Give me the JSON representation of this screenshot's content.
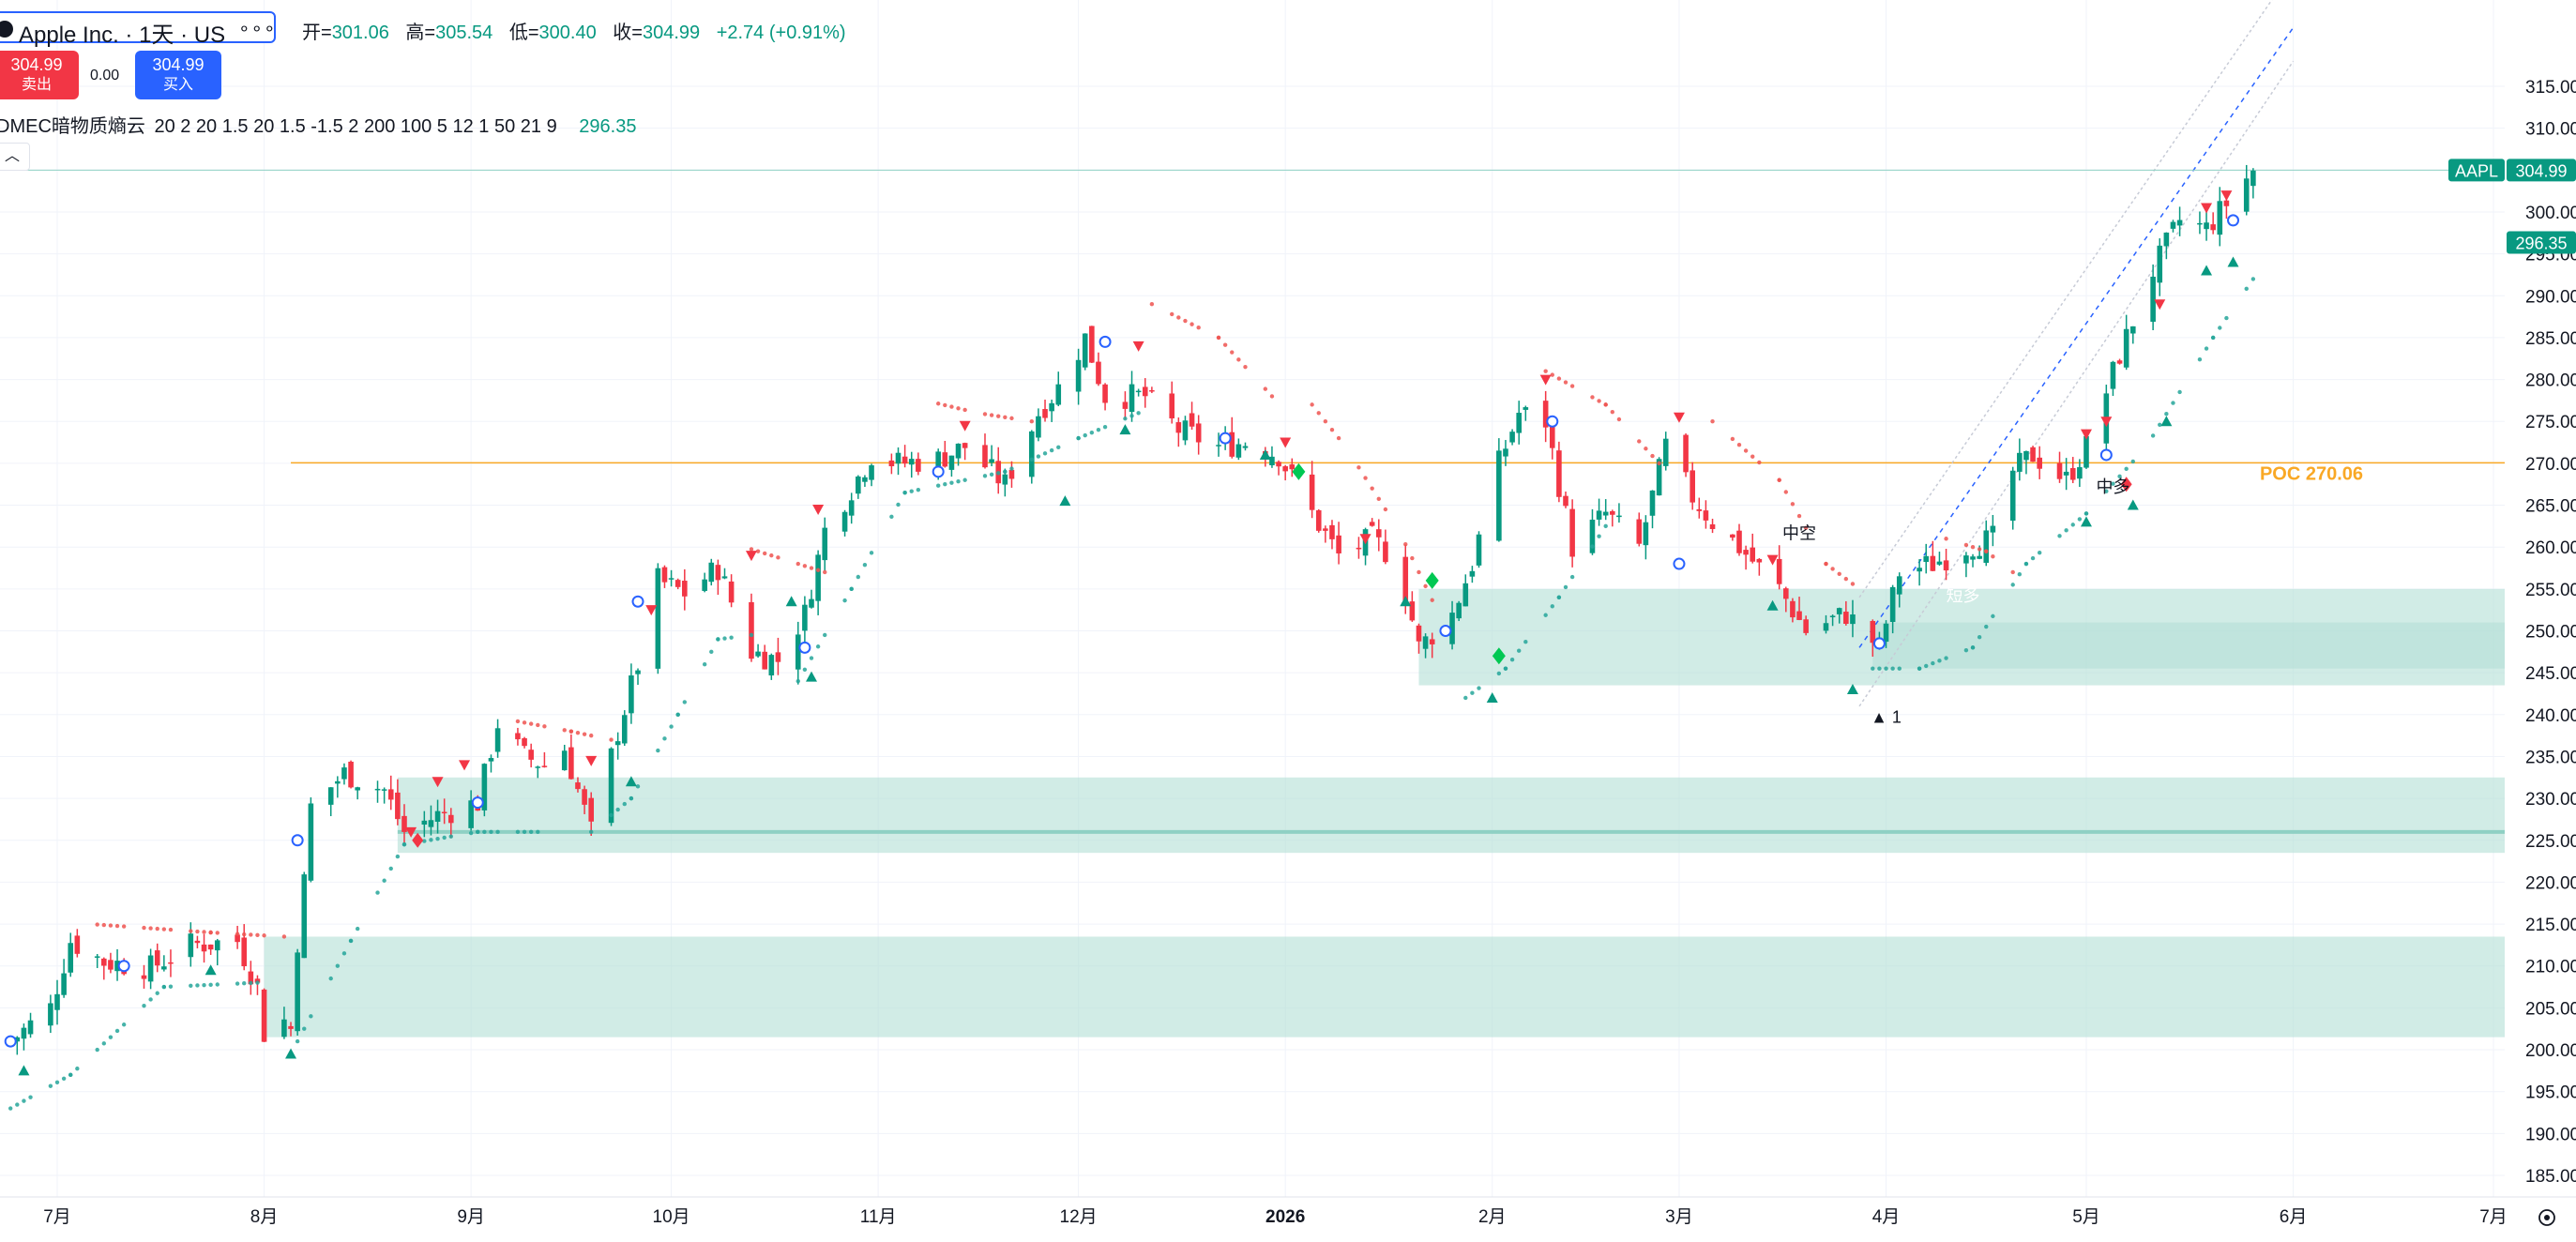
{
  "header": {
    "symbol_title": "Apple Inc. · 1天 · US",
    "ohlc": [
      {
        "key": "开=",
        "value": "301.06"
      },
      {
        "key": "高=",
        "value": "305.54"
      },
      {
        "key": "低=",
        "value": "300.40"
      },
      {
        "key": "收=",
        "value": "304.99"
      }
    ],
    "change": "+2.74 (+0.91%)",
    "sell_price": "304.99",
    "sell_label": "卖出",
    "spread": "0.00",
    "buy_price": "304.99",
    "buy_label": "买入",
    "indicator_name": "DMEC暗物质熵云",
    "indicator_params": "20 2 20 1.5 20 1.5 -1.5 2 200 100 5 12 1 50 21 9",
    "indicator_value": "296.35",
    "collapse_icon": "chevron-up-icon"
  },
  "colors": {
    "up": "#089981",
    "down": "#f23645",
    "zone": "#b2dfd6",
    "poc": "#f9a825",
    "sar_up": "#26a69a",
    "sar_down": "#ef5350",
    "channel_mid": "#2962ff"
  },
  "chart_data": {
    "type": "candlestick",
    "symbol": "AAPL",
    "last_price": 304.99,
    "indicator_price": 296.35,
    "ylim": [
      183,
      318
    ],
    "y_ticks": [
      "185.00",
      "190.00",
      "195.00",
      "200.00",
      "205.00",
      "210.00",
      "215.00",
      "220.00",
      "225.00",
      "230.00",
      "235.00",
      "240.00",
      "245.00",
      "250.00",
      "255.00",
      "260.00",
      "265.00",
      "270.00",
      "275.00",
      "280.00",
      "285.00",
      "290.00",
      "295.00",
      "300.00",
      "305.00",
      "310.00",
      "315.00"
    ],
    "x_labels": [
      {
        "label": "7月",
        "date": "2025-07-01"
      },
      {
        "label": "8月",
        "date": "2025-08-01"
      },
      {
        "label": "9月",
        "date": "2025-09-01"
      },
      {
        "label": "10月",
        "date": "2025-10-01"
      },
      {
        "label": "11月",
        "date": "2025-11-01"
      },
      {
        "label": "12月",
        "date": "2025-12-01"
      },
      {
        "label": "2026",
        "date": "2026-01-01"
      },
      {
        "label": "2月",
        "date": "2026-02-01"
      },
      {
        "label": "3月",
        "date": "2026-03-01"
      },
      {
        "label": "4月",
        "date": "2026-04-01"
      },
      {
        "label": "5月",
        "date": "2026-05-01"
      },
      {
        "label": "6月",
        "date": "2026-06-01"
      },
      {
        "label": "7月",
        "date": "2026-07-01"
      }
    ],
    "close_path": [
      [
        "2025-06-24",
        201.0
      ],
      [
        "2025-06-30",
        205.0
      ],
      [
        "2025-07-03",
        213.0
      ],
      [
        "2025-07-08",
        210.5
      ],
      [
        "2025-07-15",
        209.8
      ],
      [
        "2025-07-21",
        212.5
      ],
      [
        "2025-07-28",
        213.0
      ],
      [
        "2025-07-31",
        207.5
      ],
      [
        "2025-08-01",
        202.0
      ],
      [
        "2025-08-04",
        203.5
      ],
      [
        "2025-08-05",
        202.5
      ],
      [
        "2025-08-06",
        213.0
      ],
      [
        "2025-08-07",
        220.0
      ],
      [
        "2025-08-08",
        229.0
      ],
      [
        "2025-08-13",
        233.0
      ],
      [
        "2025-08-19",
        231.0
      ],
      [
        "2025-08-22",
        226.0
      ],
      [
        "2025-08-27",
        228.0
      ],
      [
        "2025-09-02",
        229.5
      ],
      [
        "2025-09-05",
        239.0
      ],
      [
        "2025-09-09",
        235.0
      ],
      [
        "2025-09-12",
        234.0
      ],
      [
        "2025-09-15",
        236.0
      ],
      [
        "2025-09-19",
        226.0
      ],
      [
        "2025-09-23",
        238.0
      ],
      [
        "2025-09-26",
        246.0
      ],
      [
        "2025-09-29",
        256.0
      ],
      [
        "2025-10-03",
        254.5
      ],
      [
        "2025-10-08",
        257.5
      ],
      [
        "2025-10-13",
        247.5
      ],
      [
        "2025-10-17",
        246.5
      ],
      [
        "2025-10-21",
        252.0
      ],
      [
        "2025-10-24",
        262.0
      ],
      [
        "2025-10-28",
        267.0
      ],
      [
        "2025-10-31",
        271.0
      ],
      [
        "2025-11-04",
        270.0
      ],
      [
        "2025-11-10",
        270.5
      ],
      [
        "2025-11-14",
        272.0
      ],
      [
        "2025-11-20",
        267.5
      ],
      [
        "2025-11-25",
        276.0
      ],
      [
        "2025-11-28",
        279.0
      ],
      [
        "2025-12-02",
        285.0
      ],
      [
        "2025-12-05",
        278.0
      ],
      [
        "2025-12-11",
        278.0
      ],
      [
        "2025-12-16",
        274.0
      ],
      [
        "2025-12-22",
        272.0
      ],
      [
        "2025-12-26",
        272.5
      ],
      [
        "2025-12-31",
        271.0
      ],
      [
        "2026-01-05",
        264.0
      ],
      [
        "2026-01-09",
        259.0
      ],
      [
        "2026-01-14",
        261.0
      ],
      [
        "2026-01-18",
        258.0
      ],
      [
        "2026-01-21",
        248.0
      ],
      [
        "2026-01-26",
        252.0
      ],
      [
        "2026-01-29",
        258.0
      ],
      [
        "2026-02-02",
        270.0
      ],
      [
        "2026-02-05",
        276.0
      ],
      [
        "2026-02-09",
        275.0
      ],
      [
        "2026-02-13",
        260.0
      ],
      [
        "2026-02-18",
        264.0
      ],
      [
        "2026-02-23",
        260.0
      ],
      [
        "2026-02-27",
        272.0
      ],
      [
        "2026-03-03",
        266.0
      ],
      [
        "2026-03-06",
        263.0
      ],
      [
        "2026-03-10",
        260.0
      ],
      [
        "2026-03-16",
        255.0
      ],
      [
        "2026-03-20",
        250.0
      ],
      [
        "2026-03-26",
        252.0
      ],
      [
        "2026-03-31",
        248.0
      ],
      [
        "2026-04-03",
        257.0
      ],
      [
        "2026-04-08",
        258.0
      ],
      [
        "2026-04-13",
        260.0
      ],
      [
        "2026-04-17",
        261.0
      ],
      [
        "2026-04-20",
        269.0
      ],
      [
        "2026-04-23",
        271.0
      ],
      [
        "2026-04-28",
        268.0
      ],
      [
        "2026-05-01",
        272.0
      ],
      [
        "2026-05-06",
        283.0
      ],
      [
        "2026-05-11",
        293.0
      ],
      [
        "2026-05-15",
        299.0
      ],
      [
        "2026-05-19",
        298.0
      ],
      [
        "2026-05-22",
        301.0
      ],
      [
        "2026-05-26",
        304.99
      ]
    ],
    "sar_up_segments": [
      [
        [
          "2025-06-24",
          193.0
        ],
        [
          "2025-07-03",
          197.0
        ],
        [
          "2025-07-17",
          207.5
        ],
        [
          "2025-07-31",
          208.0
        ]
      ],
      [
        [
          "2025-08-06",
          201.0
        ],
        [
          "2025-08-14",
          213.0
        ],
        [
          "2025-08-22",
          224.5
        ],
        [
          "2025-09-02",
          226.0
        ],
        [
          "2025-09-11",
          226.0
        ]
      ],
      [
        [
          "2025-09-19",
          226.0
        ],
        [
          "2025-09-25",
          230.0
        ],
        [
          "2025-10-02",
          240.0
        ],
        [
          "2025-10-08",
          249.0
        ],
        [
          "2025-10-13",
          249.5
        ]
      ],
      [
        [
          "2025-10-20",
          244.0
        ],
        [
          "2025-10-28",
          255.0
        ],
        [
          "2025-11-05",
          266.5
        ],
        [
          "2025-11-20",
          269.0
        ],
        [
          "2025-12-01",
          273.0
        ],
        [
          "2025-12-10",
          276.0
        ]
      ],
      [
        [
          "2026-01-28",
          242.0
        ],
        [
          "2026-02-03",
          245.5
        ],
        [
          "2026-02-11",
          254.0
        ],
        [
          "2026-02-18",
          262.5
        ]
      ],
      [
        [
          "2026-03-28",
          245.5
        ],
        [
          "2026-04-06",
          245.5
        ],
        [
          "2026-04-14",
          248.0
        ],
        [
          "2026-04-22",
          258.0
        ],
        [
          "2026-05-01",
          264.0
        ],
        [
          "2026-05-10",
          272.0
        ],
        [
          "2026-05-20",
          285.0
        ],
        [
          "2026-05-26",
          292.0
        ]
      ]
    ],
    "sar_down_segments": [
      [
        [
          "2025-07-06",
          215.0
        ],
        [
          "2025-07-24",
          214.0
        ],
        [
          "2025-08-04",
          213.5
        ]
      ],
      [
        [
          "2025-09-06",
          239.5
        ],
        [
          "2025-09-16",
          238.0
        ],
        [
          "2025-09-22",
          237.0
        ]
      ],
      [
        [
          "2025-10-12",
          260.0
        ],
        [
          "2025-10-18",
          258.5
        ],
        [
          "2025-10-24",
          257.0
        ]
      ],
      [
        [
          "2025-11-08",
          277.5
        ],
        [
          "2025-11-16",
          276.0
        ],
        [
          "2025-11-24",
          275.0
        ]
      ],
      [
        [
          "2025-12-12",
          289.0
        ],
        [
          "2025-12-22",
          285.0
        ],
        [
          "2025-12-30",
          278.0
        ]
      ],
      [
        [
          "2026-01-04",
          278.0
        ],
        [
          "2026-01-10",
          272.0
        ],
        [
          "2026-01-18",
          262.0
        ],
        [
          "2026-01-24",
          252.0
        ]
      ],
      [
        [
          "2026-02-09",
          281.0
        ],
        [
          "2026-02-18",
          277.0
        ],
        [
          "2026-02-26",
          270.0
        ]
      ],
      [
        [
          "2026-03-06",
          275.0
        ],
        [
          "2026-03-16",
          268.0
        ],
        [
          "2026-03-23",
          258.0
        ],
        [
          "2026-03-28",
          255.0
        ]
      ],
      [
        [
          "2026-04-10",
          261.0
        ],
        [
          "2026-04-16",
          259.5
        ],
        [
          "2026-04-20",
          257.0
        ]
      ]
    ],
    "poc": {
      "value": 270.06,
      "label": "POC 270.06",
      "from": "2025-08-05"
    },
    "zones": [
      {
        "from": "2025-08-01",
        "y1": 201.5,
        "y2": 213.5
      },
      {
        "from": "2025-08-21",
        "y1": 223.5,
        "y2": 232.5,
        "line": 226.0
      },
      {
        "from": "2026-01-21",
        "y1": 243.5,
        "y2": 255.0
      },
      {
        "from": "2026-03-30",
        "y1": 245.5,
        "y2": 251.0
      }
    ],
    "zone_label": "短多",
    "channel": {
      "upper": [
        [
          "2026-03-28",
          254.0
        ],
        [
          "2026-06-01",
          329.0
        ]
      ],
      "lower": [
        [
          "2026-03-28",
          241.0
        ],
        [
          "2026-06-01",
          318.0
        ]
      ],
      "mid": [
        [
          "2026-03-28",
          248.0
        ],
        [
          "2026-06-01",
          322.0
        ]
      ]
    },
    "signals_up": [
      [
        "2025-06-26",
        197.5
      ],
      [
        "2025-07-24",
        209.5
      ],
      [
        "2025-08-05",
        199.5
      ],
      [
        "2025-09-25",
        232.0
      ],
      [
        "2025-10-19",
        253.5
      ],
      [
        "2025-10-22",
        244.5
      ],
      [
        "2025-11-29",
        265.5
      ],
      [
        "2025-12-08",
        274.0
      ],
      [
        "2025-12-29",
        271.0
      ],
      [
        "2026-01-19",
        253.5
      ],
      [
        "2026-02-01",
        242.0
      ],
      [
        "2026-03-15",
        253.0
      ],
      [
        "2026-03-27",
        243.0
      ],
      [
        "2026-05-01",
        263.0
      ],
      [
        "2026-05-08",
        265.0
      ],
      [
        "2026-05-13",
        275.0
      ],
      [
        "2026-05-19",
        293.0
      ],
      [
        "2026-05-23",
        294.0
      ]
    ],
    "signals_down": [
      [
        "2025-08-23",
        226.0
      ],
      [
        "2025-08-27",
        232.0
      ],
      [
        "2025-08-31",
        234.0
      ],
      [
        "2025-09-19",
        234.5
      ],
      [
        "2025-09-28",
        252.5
      ],
      [
        "2025-10-13",
        259.0
      ],
      [
        "2025-10-23",
        264.5
      ],
      [
        "2025-11-14",
        274.5
      ],
      [
        "2025-12-10",
        284.0
      ],
      [
        "2026-01-01",
        272.5
      ],
      [
        "2026-01-13",
        261.0
      ],
      [
        "2026-02-09",
        280.0
      ],
      [
        "2026-03-01",
        275.5
      ],
      [
        "2026-03-15",
        258.5
      ],
      [
        "2026-05-01",
        273.5
      ],
      [
        "2026-05-04",
        275.0
      ],
      [
        "2026-05-12",
        289.0
      ],
      [
        "2026-05-19",
        300.5
      ],
      [
        "2026-05-22",
        302.0
      ]
    ],
    "signals_ring": [
      [
        "2025-06-24",
        201.0
      ],
      [
        "2025-07-11",
        210.0
      ],
      [
        "2025-08-06",
        225.0
      ],
      [
        "2025-09-02",
        229.5
      ],
      [
        "2025-09-26",
        253.5
      ],
      [
        "2025-10-21",
        248.0
      ],
      [
        "2025-11-10",
        269.0
      ],
      [
        "2025-12-05",
        284.5
      ],
      [
        "2025-12-23",
        273.0
      ],
      [
        "2026-01-25",
        250.0
      ],
      [
        "2026-02-10",
        275.0
      ],
      [
        "2026-03-01",
        258.0
      ],
      [
        "2026-03-31",
        248.5
      ],
      [
        "2026-05-04",
        271.0
      ],
      [
        "2026-05-23",
        299.0
      ]
    ],
    "signals_diamond_green": [
      [
        "2026-01-03",
        269.0
      ],
      [
        "2026-01-23",
        256.0
      ],
      [
        "2026-02-02",
        247.0
      ]
    ],
    "signals_diamond_red": [
      [
        "2025-08-24",
        225.0
      ],
      [
        "2026-05-07",
        267.5
      ]
    ],
    "annotations": [
      {
        "text": "中空",
        "date": "2026-03-19",
        "y": 261.0
      },
      {
        "text": "中多",
        "date": "2026-05-05",
        "y": 266.5
      },
      {
        "text": "▲ 1",
        "date": "2026-04-01",
        "y": 239.0
      }
    ],
    "price_labels": [
      {
        "text": "AAPL",
        "value": 304.99
      },
      {
        "text": "304.99",
        "value": 304.99
      },
      {
        "text": "296.35",
        "value": 296.35
      }
    ],
    "settings_icon": "settings-icon"
  }
}
